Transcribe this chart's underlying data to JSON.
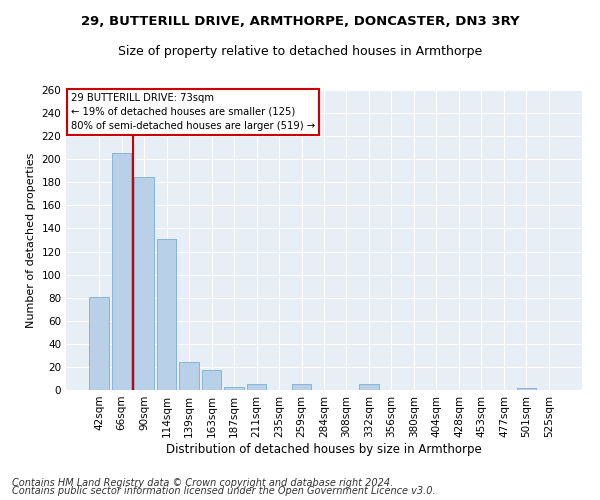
{
  "title1": "29, BUTTERILL DRIVE, ARMTHORPE, DONCASTER, DN3 3RY",
  "title2": "Size of property relative to detached houses in Armthorpe",
  "xlabel": "Distribution of detached houses by size in Armthorpe",
  "ylabel": "Number of detached properties",
  "footer1": "Contains HM Land Registry data © Crown copyright and database right 2024.",
  "footer2": "Contains public sector information licensed under the Open Government Licence v3.0.",
  "annotation_title": "29 BUTTERILL DRIVE: 73sqm",
  "annotation_line1": "← 19% of detached houses are smaller (125)",
  "annotation_line2": "80% of semi-detached houses are larger (519) →",
  "bar_labels": [
    "42sqm",
    "66sqm",
    "90sqm",
    "114sqm",
    "139sqm",
    "163sqm",
    "187sqm",
    "211sqm",
    "235sqm",
    "259sqm",
    "284sqm",
    "308sqm",
    "332sqm",
    "356sqm",
    "380sqm",
    "404sqm",
    "428sqm",
    "453sqm",
    "477sqm",
    "501sqm",
    "525sqm"
  ],
  "bar_values": [
    81,
    205,
    185,
    131,
    24,
    17,
    3,
    5,
    0,
    5,
    0,
    0,
    5,
    0,
    0,
    0,
    0,
    0,
    0,
    2,
    0
  ],
  "bar_color": "#b8d0e8",
  "bar_edge_color": "#7aafd4",
  "vline_x": 1.5,
  "vline_color": "#cc0000",
  "ylim": [
    0,
    260
  ],
  "yticks": [
    0,
    20,
    40,
    60,
    80,
    100,
    120,
    140,
    160,
    180,
    200,
    220,
    240,
    260
  ],
  "bg_color": "#e8eef5",
  "grid_color": "#ffffff",
  "fig_bg_color": "#ffffff",
  "annotation_box_color": "#ffffff",
  "annotation_border_color": "#cc0000",
  "title1_fontsize": 9.5,
  "title2_fontsize": 9,
  "xlabel_fontsize": 8.5,
  "ylabel_fontsize": 8,
  "tick_fontsize": 7.5,
  "footer_fontsize": 7
}
